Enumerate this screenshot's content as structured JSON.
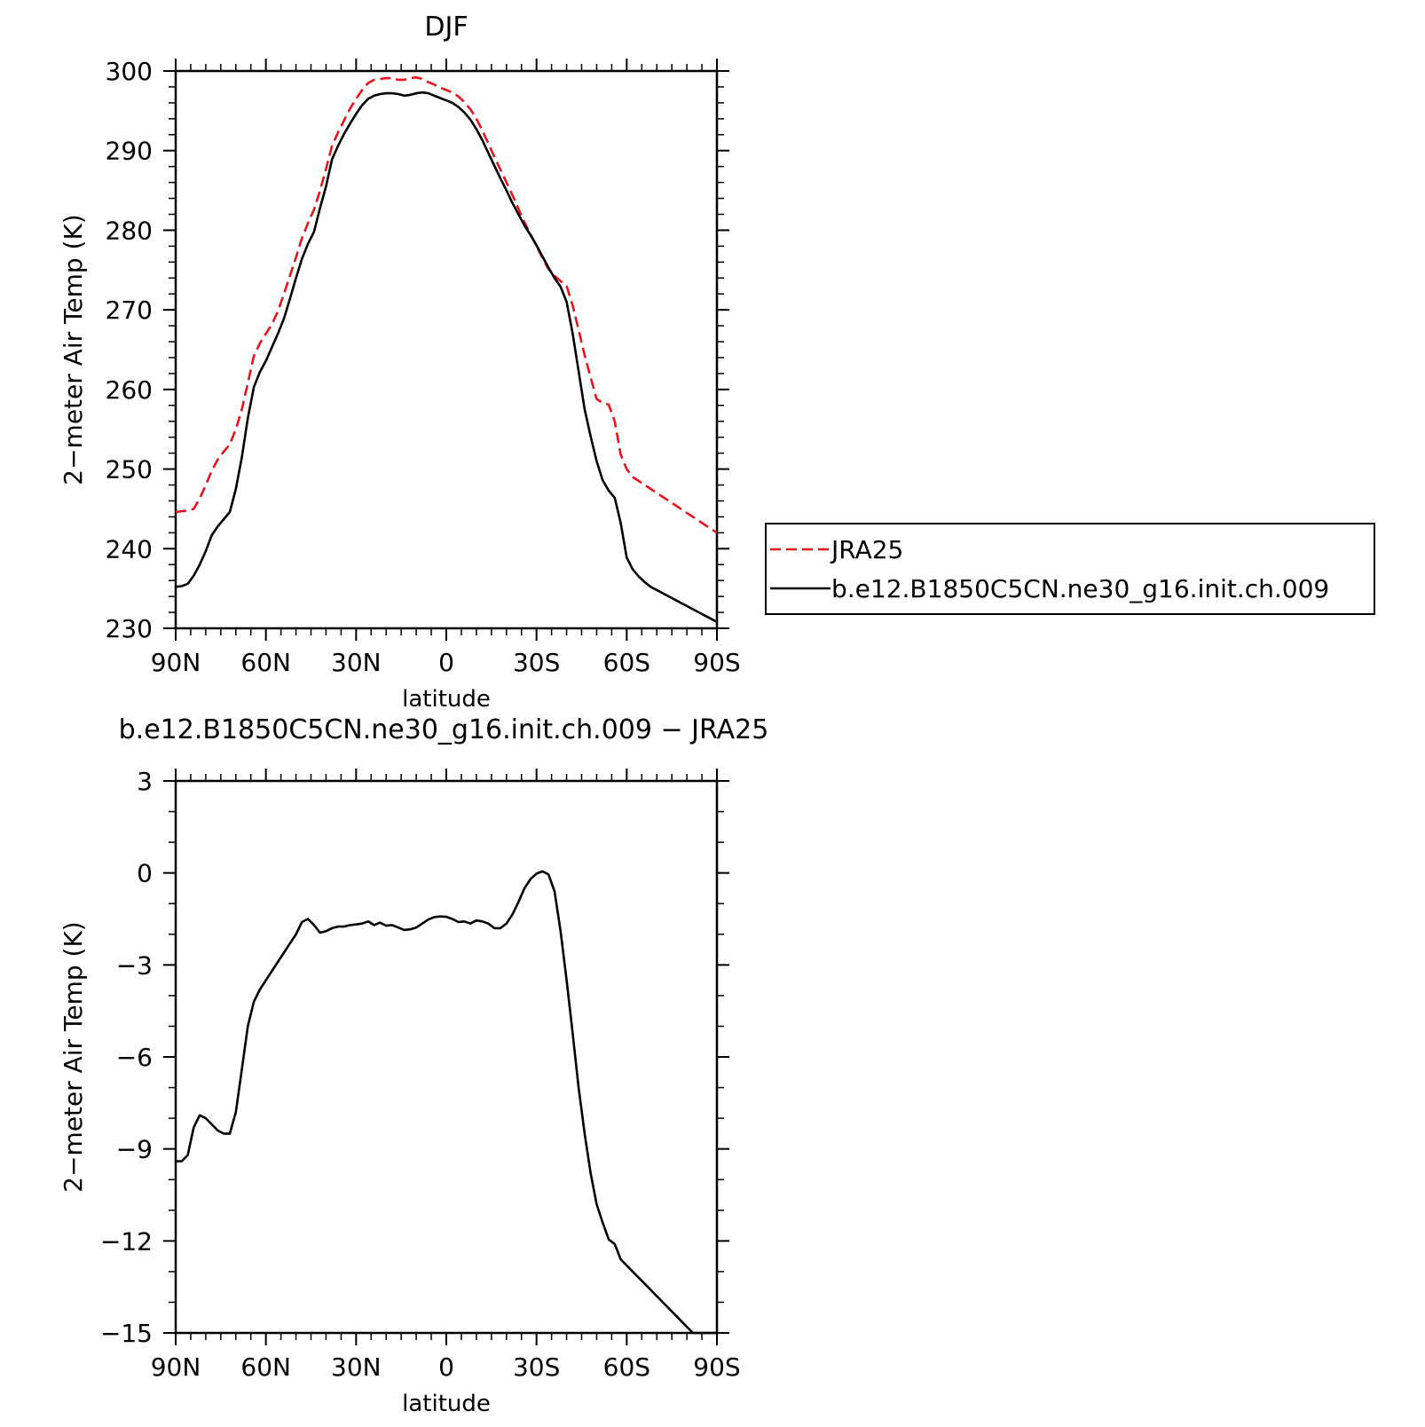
{
  "chart_data": [
    {
      "type": "line",
      "title": "DJF",
      "xlabel": "latitude",
      "ylabel": "2−meter Air Temp (K)",
      "x_tick_labels": [
        "90N",
        "60N",
        "30N",
        "0",
        "30S",
        "60S",
        "90S"
      ],
      "x_tick_values": [
        90,
        60,
        30,
        0,
        -30,
        -60,
        -90
      ],
      "xlim": [
        90,
        -90
      ],
      "ylim": [
        230,
        300
      ],
      "y_ticks": [
        230,
        240,
        250,
        260,
        270,
        280,
        290,
        300
      ],
      "legend_position": "right",
      "series": [
        {
          "name": "JRA25",
          "color": "#e8141c",
          "dash": "dashed",
          "x": [
            90,
            88,
            86,
            84,
            82,
            80,
            78,
            76,
            74,
            72,
            70,
            68,
            66,
            64,
            62,
            60,
            58,
            56,
            54,
            52,
            50,
            48,
            46,
            44,
            42,
            40,
            38,
            36,
            34,
            32,
            30,
            28,
            26,
            24,
            22,
            20,
            18,
            16,
            14,
            12,
            10,
            8,
            6,
            4,
            2,
            0,
            -2,
            -4,
            -6,
            -8,
            -10,
            -12,
            -14,
            -16,
            -18,
            -20,
            -22,
            -24,
            -26,
            -28,
            -30,
            -32,
            -34,
            -36,
            -38,
            -40,
            -42,
            -44,
            -46,
            -48,
            -50,
            -52,
            -54,
            -56,
            -58,
            -60,
            -62,
            -64,
            -66,
            -68,
            -70,
            -72,
            -74,
            -76,
            -78,
            -80,
            -82,
            -84,
            -86,
            -88,
            -90
          ],
          "values": [
            244.6,
            244.7,
            244.8,
            245.0,
            246.3,
            248.0,
            249.8,
            251.2,
            252.2,
            253.1,
            255.0,
            257.5,
            260.8,
            264.2,
            265.8,
            267.0,
            268.2,
            269.8,
            272.0,
            274.3,
            276.6,
            279.0,
            280.9,
            282.6,
            285.0,
            287.7,
            290.6,
            292.3,
            293.8,
            295.3,
            296.5,
            297.6,
            298.5,
            298.9,
            299.0,
            299.1,
            299.1,
            298.9,
            298.9,
            299.1,
            299.2,
            299.0,
            298.6,
            298.3,
            297.9,
            297.6,
            297.3,
            296.8,
            296.1,
            295.2,
            294.0,
            292.5,
            290.9,
            289.2,
            287.6,
            286.0,
            284.4,
            282.7,
            281.0,
            279.5,
            278.0,
            276.5,
            275.1,
            274.3,
            273.6,
            273.0,
            270.6,
            267.5,
            264.3,
            261.5,
            258.8,
            258.3,
            258.1,
            256.0,
            251.8,
            250.0,
            249.0,
            248.5,
            248.0,
            247.5,
            247.0,
            246.5,
            246.0,
            245.5,
            245.0,
            244.5,
            244.0,
            243.5,
            243.0,
            242.5,
            242.0
          ]
        },
        {
          "name": "b.e12.B1850C5CN.ne30_g16.init.ch.009",
          "color": "#000000",
          "dash": "solid",
          "x": [
            90,
            88,
            86,
            84,
            82,
            80,
            78,
            76,
            74,
            72,
            70,
            68,
            66,
            64,
            62,
            60,
            58,
            56,
            54,
            52,
            50,
            48,
            46,
            44,
            42,
            40,
            38,
            36,
            34,
            32,
            30,
            28,
            26,
            24,
            22,
            20,
            18,
            16,
            14,
            12,
            10,
            8,
            6,
            4,
            2,
            0,
            -2,
            -4,
            -6,
            -8,
            -10,
            -12,
            -14,
            -16,
            -18,
            -20,
            -22,
            -24,
            -26,
            -28,
            -30,
            -32,
            -34,
            -36,
            -38,
            -40,
            -42,
            -44,
            -46,
            -48,
            -50,
            -52,
            -54,
            -56,
            -58,
            -60,
            -62,
            -64,
            -66,
            -68,
            -70,
            -72,
            -74,
            -76,
            -78,
            -80,
            -82,
            -84,
            -86,
            -88,
            -90
          ],
          "values": [
            235.2,
            235.3,
            235.6,
            236.6,
            238.0,
            239.7,
            241.7,
            242.8,
            243.7,
            244.6,
            247.5,
            251.5,
            256.4,
            260.3,
            262.2,
            263.6,
            265.3,
            267.0,
            268.9,
            271.4,
            274.0,
            276.4,
            278.3,
            279.8,
            282.8,
            285.5,
            288.9,
            290.6,
            292.1,
            293.4,
            294.6,
            295.7,
            296.5,
            296.9,
            297.1,
            297.2,
            297.2,
            297.1,
            296.9,
            297.0,
            297.2,
            297.3,
            297.2,
            296.9,
            296.6,
            296.3,
            296.0,
            295.5,
            294.8,
            293.9,
            292.7,
            291.3,
            289.7,
            288.1,
            286.5,
            285.0,
            283.4,
            282.0,
            280.6,
            279.4,
            278.1,
            276.7,
            275.3,
            274.0,
            272.9,
            271.0,
            267.1,
            262.3,
            257.5,
            254.1,
            251.0,
            248.6,
            247.3,
            246.4,
            243.2,
            238.9,
            237.4,
            236.5,
            235.8,
            235.2,
            234.8,
            234.4,
            234.0,
            233.6,
            233.2,
            232.8,
            232.4,
            232.0,
            231.6,
            231.2,
            230.8
          ]
        }
      ]
    },
    {
      "type": "line",
      "title": "b.e12.B1850C5CN.ne30_g16.init.ch.009 − JRA25",
      "xlabel": "latitude",
      "ylabel": "2−meter Air Temp (K)",
      "x_tick_labels": [
        "90N",
        "60N",
        "30N",
        "0",
        "30S",
        "60S",
        "90S"
      ],
      "x_tick_values": [
        90,
        60,
        30,
        0,
        -30,
        -60,
        -90
      ],
      "xlim": [
        90,
        -90
      ],
      "ylim": [
        -15,
        3
      ],
      "y_tick_labels": [
        "3",
        "0",
        "−3",
        "−6",
        "−9",
        "−12",
        "−15"
      ],
      "y_tick_values": [
        3,
        0,
        -3,
        -6,
        -9,
        -12,
        -15
      ],
      "series": [
        {
          "name": "",
          "color": "#000000",
          "dash": "solid",
          "x": [
            90,
            88,
            86,
            84,
            82,
            80,
            78,
            76,
            74,
            72,
            70,
            68,
            66,
            64,
            62,
            60,
            58,
            56,
            54,
            52,
            50,
            48,
            46,
            44,
            42,
            40,
            38,
            36,
            34,
            32,
            30,
            28,
            26,
            24,
            22,
            20,
            18,
            16,
            14,
            12,
            10,
            8,
            6,
            4,
            2,
            0,
            -2,
            -4,
            -6,
            -8,
            -10,
            -12,
            -14,
            -16,
            -18,
            -20,
            -22,
            -24,
            -26,
            -28,
            -30,
            -32,
            -34,
            -36,
            -38,
            -40,
            -42,
            -44,
            -46,
            -48,
            -50,
            -52,
            -54,
            -56,
            -58,
            -60,
            -62,
            -64,
            -66,
            -68,
            -70,
            -72,
            -74,
            -76,
            -78,
            -80,
            -82,
            -84,
            -86,
            -88,
            -90
          ],
          "values": [
            -9.4,
            -9.4,
            -9.2,
            -8.3,
            -7.9,
            -8.0,
            -8.2,
            -8.4,
            -8.5,
            -8.5,
            -7.8,
            -6.4,
            -5.0,
            -4.2,
            -3.8,
            -3.5,
            -3.2,
            -2.9,
            -2.6,
            -2.3,
            -2.0,
            -1.6,
            -1.5,
            -1.7,
            -1.95,
            -1.9,
            -1.8,
            -1.75,
            -1.75,
            -1.7,
            -1.68,
            -1.65,
            -1.58,
            -1.7,
            -1.62,
            -1.72,
            -1.7,
            -1.78,
            -1.86,
            -1.84,
            -1.78,
            -1.65,
            -1.52,
            -1.44,
            -1.42,
            -1.43,
            -1.5,
            -1.6,
            -1.58,
            -1.65,
            -1.55,
            -1.58,
            -1.65,
            -1.8,
            -1.8,
            -1.65,
            -1.35,
            -0.95,
            -0.5,
            -0.2,
            -0.02,
            0.05,
            -0.05,
            -0.6,
            -1.9,
            -3.5,
            -5.2,
            -7.0,
            -8.5,
            -9.8,
            -10.8,
            -11.4,
            -11.95,
            -12.1,
            -12.6,
            -12.8,
            -13.0,
            -13.2,
            -13.4,
            -13.6,
            -13.8,
            -14.0,
            -14.2,
            -14.4,
            -14.6,
            -14.8,
            -15.0,
            -15.0,
            -15.0,
            -15.0,
            -15.0
          ]
        }
      ]
    }
  ]
}
